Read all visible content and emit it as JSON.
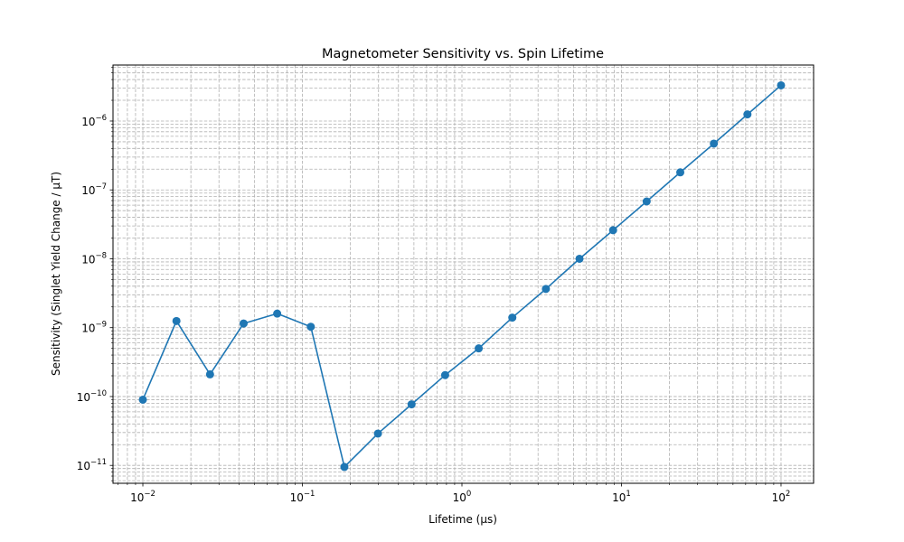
{
  "chart_data": {
    "type": "line",
    "title": "Magnetometer Sensitivity vs. Spin Lifetime",
    "xlabel": "Lifetime (μs)",
    "ylabel": "Sensitivity (Singlet Yield Change / μT)",
    "xscale": "log",
    "yscale": "log",
    "xlim": [
      0.0065,
      160
    ],
    "ylim": [
      5.5e-12,
      6.5e-06
    ],
    "grid": true,
    "legend": "none",
    "x_ticks": [
      {
        "value": 0.01,
        "label": "10",
        "exp": "−2"
      },
      {
        "value": 0.1,
        "label": "10",
        "exp": "−1"
      },
      {
        "value": 1,
        "label": "10",
        "exp": "0"
      },
      {
        "value": 10,
        "label": "10",
        "exp": "1"
      },
      {
        "value": 100,
        "label": "10",
        "exp": "2"
      }
    ],
    "y_ticks": [
      {
        "value": 1e-11,
        "label": "10",
        "exp": "−11"
      },
      {
        "value": 1e-10,
        "label": "10",
        "exp": "−10"
      },
      {
        "value": 1e-09,
        "label": "10",
        "exp": "−9"
      },
      {
        "value": 1e-08,
        "label": "10",
        "exp": "−8"
      },
      {
        "value": 1e-07,
        "label": "10",
        "exp": "−7"
      },
      {
        "value": 1e-06,
        "label": "10",
        "exp": "−6"
      }
    ],
    "series": [
      {
        "color": "#1f77b4",
        "marker": "circle",
        "x": [
          0.01,
          0.01624,
          0.02637,
          0.04281,
          0.06952,
          0.1129,
          0.1833,
          0.2976,
          0.4833,
          0.7848,
          1.274,
          2.069,
          3.36,
          5.456,
          8.859,
          14.38,
          23.36,
          37.93,
          61.58,
          100
        ],
        "y": [
          9e-11,
          1.25e-09,
          2.1e-10,
          1.15e-09,
          1.6e-09,
          1.03e-09,
          9.5e-12,
          2.9e-11,
          7.7e-11,
          2.05e-10,
          5e-10,
          1.4e-09,
          3.65e-09,
          1e-08,
          2.6e-08,
          6.8e-08,
          1.8e-07,
          4.7e-07,
          1.25e-06,
          3.3e-06
        ]
      }
    ]
  }
}
